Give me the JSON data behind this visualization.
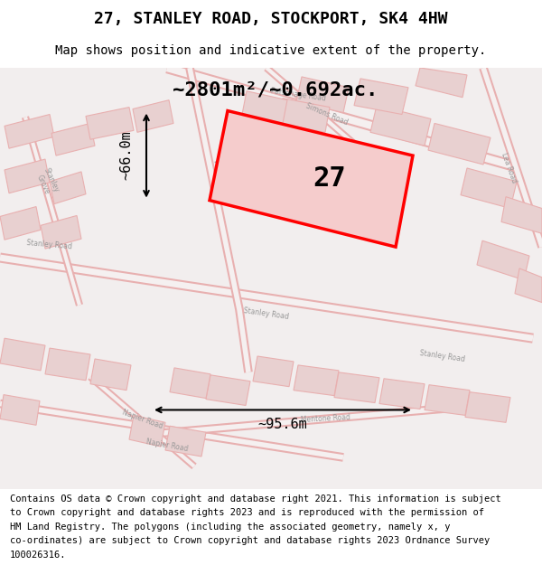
{
  "title": "27, STANLEY ROAD, STOCKPORT, SK4 4HW",
  "subtitle": "Map shows position and indicative extent of the property.",
  "area_label": "~2801m²/~0.692ac.",
  "plot_number": "27",
  "width_label": "~95.6m",
  "height_label": "~66.0m",
  "footer_lines": [
    "Contains OS data © Crown copyright and database right 2021. This information is subject",
    "to Crown copyright and database rights 2023 and is reproduced with the permission of",
    "HM Land Registry. The polygons (including the associated geometry, namely x, y",
    "co-ordinates) are subject to Crown copyright and database rights 2023 Ordnance Survey",
    "100026316."
  ],
  "map_bg": "#f2eeee",
  "street_color": "#e8b0b0",
  "building_color": "#e8d0d0",
  "plot_fill": "#f5cccc",
  "plot_edge": "#ff0000",
  "title_fontsize": 13,
  "subtitle_fontsize": 10,
  "area_fontsize": 16,
  "plot_label_fontsize": 22,
  "footer_fontsize": 7.5,
  "annotation_fontsize": 11,
  "road_label_color": "#999999",
  "road_label_fontsize": 5.5
}
